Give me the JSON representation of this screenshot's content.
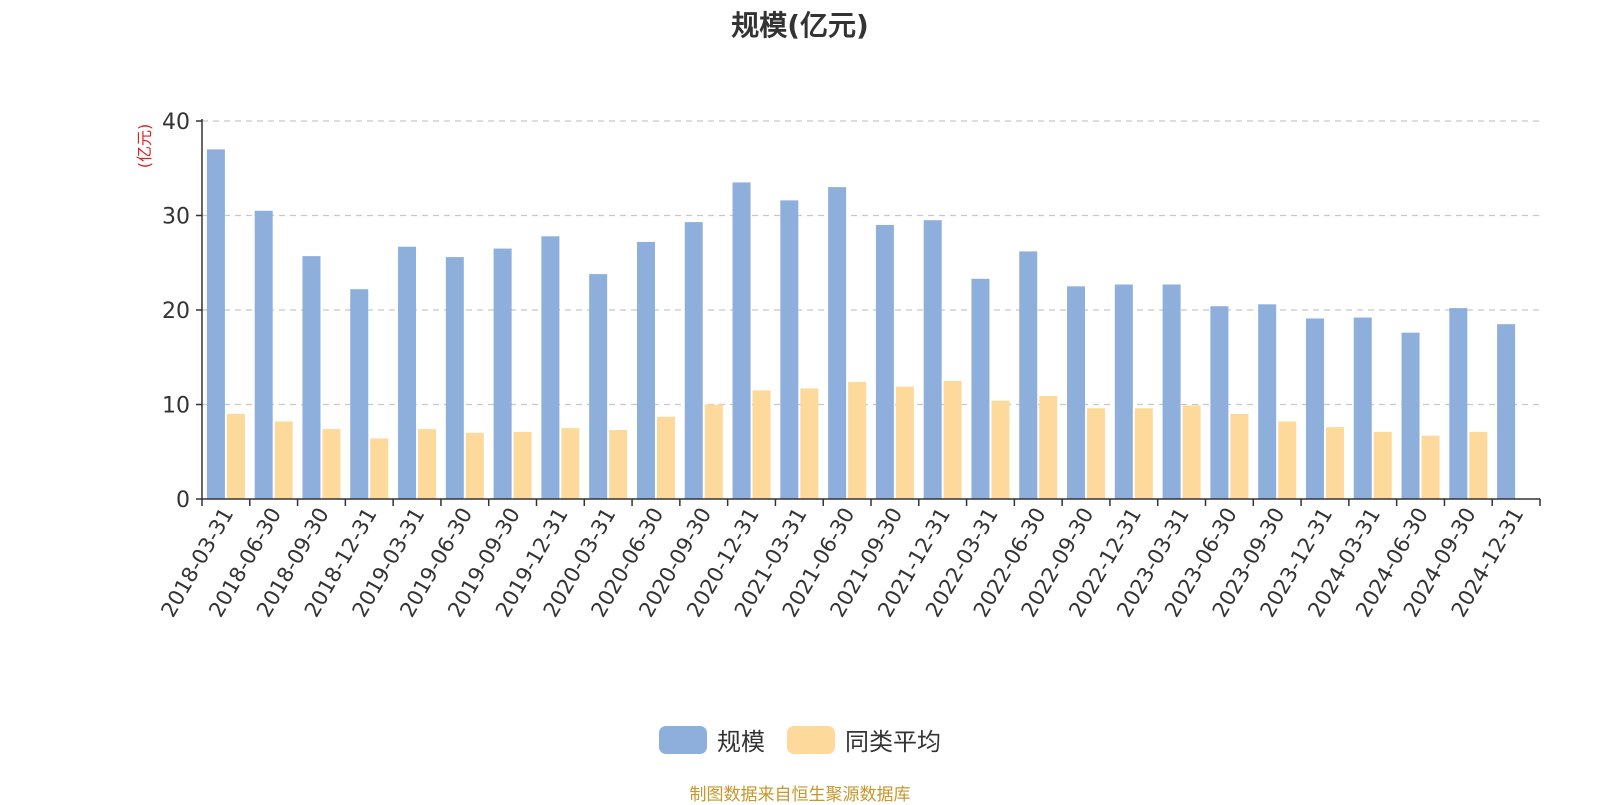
{
  "chart_data": {
    "type": "bar",
    "title": "规模(亿元)",
    "ylabel": "(亿元)",
    "ylim": [
      0,
      40
    ],
    "yticks": [
      0,
      10,
      20,
      30,
      40
    ],
    "grid": true,
    "legend_position": "bottom",
    "categories": [
      "2018-03-31",
      "2018-06-30",
      "2018-09-30",
      "2018-12-31",
      "2019-03-31",
      "2019-06-30",
      "2019-09-30",
      "2019-12-31",
      "2020-03-31",
      "2020-06-30",
      "2020-09-30",
      "2020-12-31",
      "2021-03-31",
      "2021-06-30",
      "2021-09-30",
      "2021-12-31",
      "2022-03-31",
      "2022-06-30",
      "2022-09-30",
      "2022-12-31",
      "2023-03-31",
      "2023-06-30",
      "2023-09-30",
      "2023-12-31",
      "2024-03-31",
      "2024-06-30",
      "2024-09-30",
      "2024-12-31"
    ],
    "series": [
      {
        "name": "规模",
        "color": "#8eaedc",
        "values": [
          37.0,
          30.5,
          25.7,
          22.2,
          26.7,
          25.6,
          26.5,
          27.8,
          23.8,
          27.2,
          29.3,
          33.5,
          31.6,
          33.0,
          29.0,
          29.5,
          23.3,
          26.2,
          22.5,
          22.7,
          22.7,
          20.4,
          20.6,
          19.1,
          19.2,
          17.6,
          20.2,
          18.5
        ]
      },
      {
        "name": "同类平均",
        "color": "#fdd99b",
        "values": [
          9.0,
          8.2,
          7.4,
          6.4,
          7.4,
          7.0,
          7.1,
          7.5,
          7.3,
          8.7,
          10.0,
          11.5,
          11.7,
          12.4,
          11.9,
          12.5,
          10.4,
          10.9,
          9.6,
          9.6,
          9.9,
          9.0,
          8.2,
          7.6,
          7.1,
          6.7,
          7.1,
          null
        ]
      }
    ]
  },
  "source_note": "制图数据来自恒生聚源数据库"
}
